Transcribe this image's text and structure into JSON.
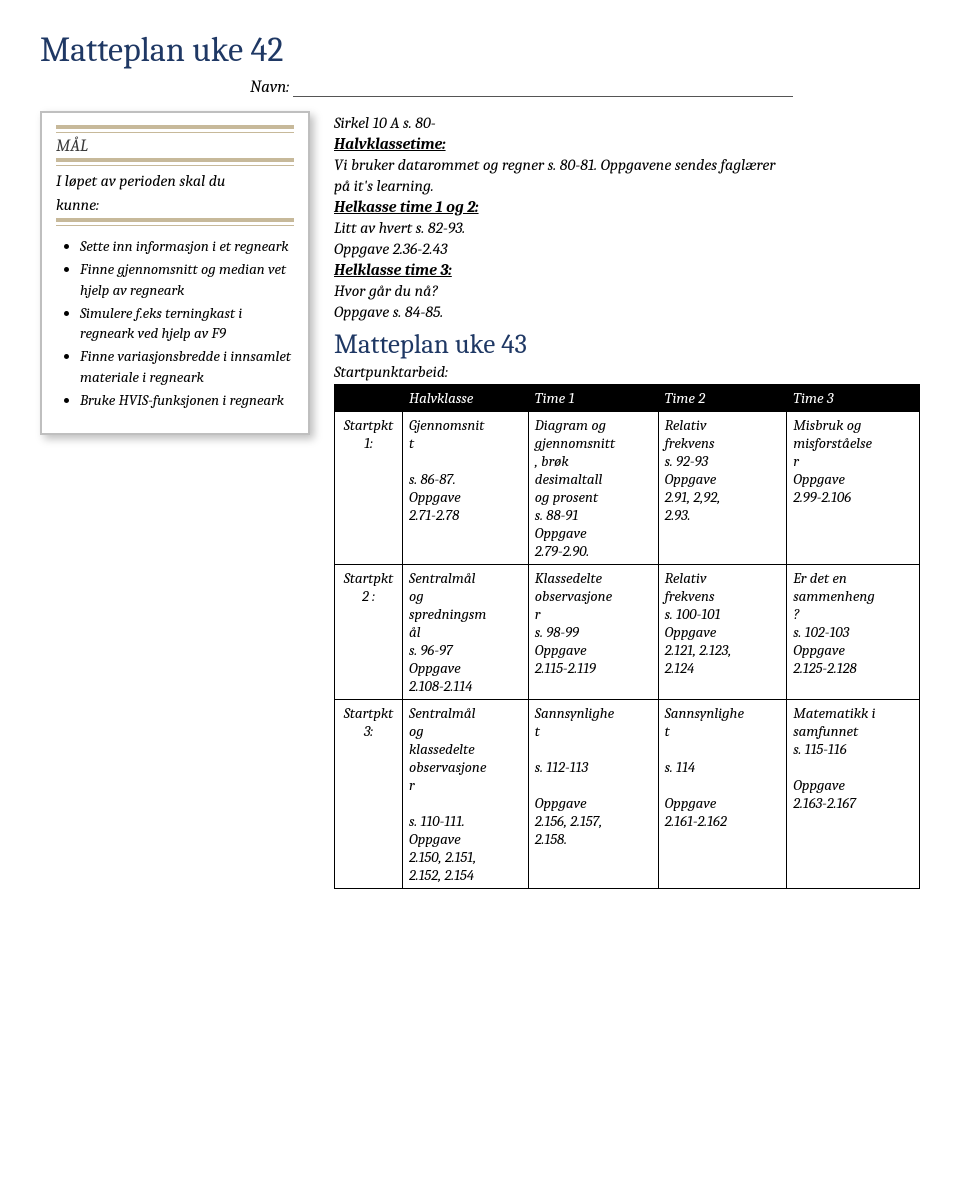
{
  "title": "Matteplan uke 42",
  "name_label": "Navn:",
  "sidebar": {
    "heading": "MÅL",
    "intro1": "I løpet av perioden  skal du",
    "intro2": "kunne:",
    "bullets": [
      "Sette inn informasjon i et regneark",
      "Finne gjennomsnitt og median vet hjelp av regneark",
      "Simulere f.eks terningkast i regneark ved hjelp av F9",
      "Finne variasjonsbredde i innsamlet materiale i regneark",
      "Bruke HVIS-funksjonen i regneark"
    ]
  },
  "top": {
    "line1": "Sirkel 10 A s. 80-",
    "halvklasse_head": "Halvklassetime:",
    "halvklasse_body1": "Vi bruker datarommet og regner s. 80-81. Oppgavene sendes faglærer",
    "halvklasse_body2": "på it's learning.",
    "helkasse12_head": "Helkasse time 1 og 2:",
    "helkasse12_l1": "Litt av hvert s. 82-93.",
    "helkasse12_l2": "Oppgave 2.36-2.43",
    "helklasse3_head": "Helklasse time 3:",
    "helklasse3_l1": "Hvor går du nå?",
    "helklasse3_l2": "Oppgave s. 84-85."
  },
  "sub_title": "Matteplan uke 43",
  "startpunkt_label": "Startpunktarbeid:",
  "table": {
    "headers": [
      "",
      "Halvklasse",
      "Time 1",
      "Time 2",
      "Time 3"
    ],
    "rows": [
      {
        "label": "Startpkt 1:",
        "c1": [
          "Gjennomsnit",
          "t",
          "",
          "s. 86-87.",
          "Oppgave",
          "2.71-2.78"
        ],
        "c2": [
          "Diagram og",
          "gjennomsnitt",
          ", brøk",
          "desimaltall",
          "og prosent",
          "s. 88-91",
          "Oppgave",
          "2.79-2.90."
        ],
        "c3": [
          "Relativ",
          "frekvens",
          "s. 92-93",
          "Oppgave",
          "2.91, 2,92,",
          "2.93."
        ],
        "c4": [
          "Misbruk og",
          "misforståelse",
          "r",
          "Oppgave",
          "2.99-2.106"
        ]
      },
      {
        "label": "Startpkt 2 :",
        "c1": [
          "Sentralmål",
          "og",
          "spredningsm",
          "ål",
          "s. 96-97",
          "Oppgave",
          "2.108-2.114"
        ],
        "c2": [
          "Klassedelte",
          "observasjone",
          "r",
          "s. 98-99",
          "Oppgave",
          "2.115-2.119"
        ],
        "c3": [
          "Relativ",
          "frekvens",
          "s. 100-101",
          "Oppgave",
          "2.121, 2.123,",
          "2.124"
        ],
        "c4": [
          "Er det en",
          "sammenheng",
          "?",
          "s. 102-103",
          "Oppgave",
          "2.125-2.128"
        ]
      },
      {
        "label": "Startpkt 3:",
        "c1": [
          "Sentralmål",
          "og",
          "klassedelte",
          "observasjone",
          "r",
          "",
          "s. 110-111.",
          "Oppgave",
          "2.150, 2.151,",
          "2.152, 2.154"
        ],
        "c2": [
          "Sannsynlighe",
          "t",
          "",
          "s. 112-113",
          "",
          "Oppgave",
          "2.156, 2.157,",
          "2.158."
        ],
        "c3": [
          "Sannsynlighe",
          "t",
          "",
          "s. 114",
          "",
          "Oppgave",
          "2.161-2.162"
        ],
        "c4": [
          "Matematikk i",
          "samfunnet",
          "s. 115-116",
          "",
          "Oppgave",
          "2.163-2.167"
        ]
      }
    ]
  }
}
